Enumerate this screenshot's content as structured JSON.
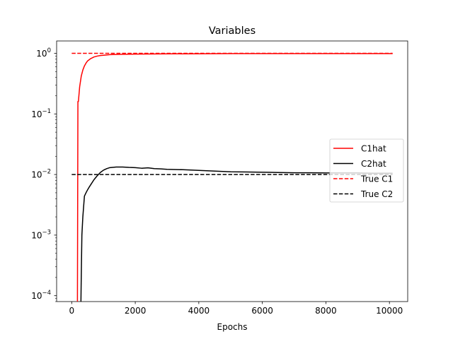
{
  "chart_data": {
    "type": "line",
    "title": "Variables",
    "xlabel": "Epochs",
    "ylabel": "",
    "x_scale": "linear",
    "y_scale": "log",
    "xlim": [
      -475,
      10575
    ],
    "ylim": [
      8e-05,
      1.6
    ],
    "x_ticks": [
      {
        "value": 0,
        "label": "0"
      },
      {
        "value": 2000,
        "label": "2000"
      },
      {
        "value": 4000,
        "label": "4000"
      },
      {
        "value": 6000,
        "label": "6000"
      },
      {
        "value": 8000,
        "label": "8000"
      },
      {
        "value": 10000,
        "label": "10000"
      }
    ],
    "y_ticks": [
      {
        "value": 0.0001,
        "base": "10",
        "exp": "−4"
      },
      {
        "value": 0.001,
        "base": "10",
        "exp": "−3"
      },
      {
        "value": 0.01,
        "base": "10",
        "exp": "−2"
      },
      {
        "value": 0.1,
        "base": "10",
        "exp": "−1"
      },
      {
        "value": 1,
        "base": "10",
        "exp": "0"
      }
    ],
    "grid": false,
    "legend_position": "center-right",
    "series": [
      {
        "name": "C1hat",
        "color": "#ff0000",
        "style": "solid",
        "x": [
          180,
          185,
          195,
          210,
          250,
          300,
          350,
          400,
          450,
          500,
          600,
          700,
          800,
          900,
          1000,
          1200,
          1500,
          2000,
          3000,
          4000,
          5000,
          6000,
          7000,
          8000,
          9000,
          10000,
          10100
        ],
        "y": [
          8e-05,
          0.001,
          0.16,
          0.16,
          0.28,
          0.42,
          0.53,
          0.62,
          0.69,
          0.75,
          0.82,
          0.87,
          0.9,
          0.92,
          0.93,
          0.95,
          0.96,
          0.97,
          0.98,
          0.985,
          0.99,
          0.99,
          0.99,
          0.99,
          0.99,
          0.99,
          0.99
        ]
      },
      {
        "name": "C2hat",
        "color": "#000000",
        "style": "solid",
        "x": [
          290,
          300,
          320,
          350,
          400,
          450,
          500,
          550,
          600,
          700,
          800,
          900,
          1000,
          1100,
          1200,
          1400,
          1600,
          1800,
          2000,
          2200,
          2400,
          2600,
          2800,
          3000,
          3500,
          4000,
          4500,
          5000,
          5500,
          6000,
          6500,
          7000,
          7500,
          8000,
          8500,
          9000,
          9500,
          10000,
          10100
        ],
        "y": [
          8e-05,
          0.0002,
          0.001,
          0.002,
          0.0044,
          0.005,
          0.0056,
          0.0062,
          0.0068,
          0.0082,
          0.0095,
          0.0108,
          0.0118,
          0.0125,
          0.013,
          0.0133,
          0.0133,
          0.0131,
          0.013,
          0.0127,
          0.0129,
          0.0125,
          0.0124,
          0.0122,
          0.012,
          0.0117,
          0.0114,
          0.0111,
          0.011,
          0.0109,
          0.0108,
          0.0107,
          0.0107,
          0.0106,
          0.0106,
          0.0106,
          0.0105,
          0.0105,
          0.0105
        ]
      },
      {
        "name": "True C1",
        "color": "#ff0000",
        "style": "dashed",
        "x": [
          0,
          10100
        ],
        "y": [
          1,
          1
        ]
      },
      {
        "name": "True C2",
        "color": "#000000",
        "style": "dashed",
        "x": [
          0,
          10100
        ],
        "y": [
          0.01,
          0.01
        ]
      }
    ]
  }
}
